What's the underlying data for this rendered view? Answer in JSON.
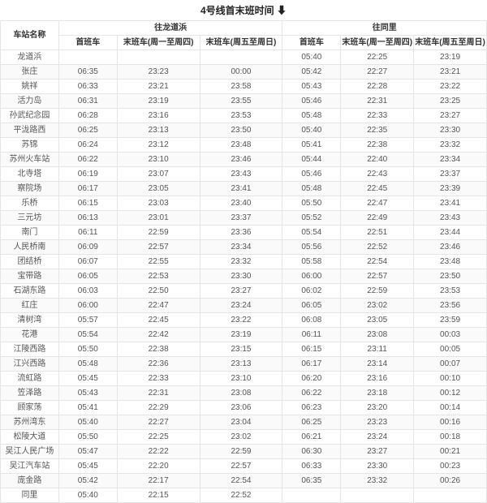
{
  "title": "4号线首末班时间",
  "download_icon": "⬇",
  "headers": {
    "station": "车站名称",
    "dir_a": "往龙道浜",
    "dir_b": "往同里",
    "first": "首班车",
    "last_wk": "末班车(周一至周四)",
    "last_we": "末班车(周五至周日)"
  },
  "stations": [
    {
      "name": "龙道浜",
      "a_first": "",
      "a_wk": "",
      "a_we": "",
      "b_first": "05:40",
      "b_wk": "22:25",
      "b_we": "23:19"
    },
    {
      "name": "张庄",
      "a_first": "06:35",
      "a_wk": "23:23",
      "a_we": "00:00",
      "b_first": "05:42",
      "b_wk": "22:27",
      "b_we": "23:21"
    },
    {
      "name": "姚祥",
      "a_first": "06:33",
      "a_wk": "23:21",
      "a_we": "23:58",
      "b_first": "05:43",
      "b_wk": "22:28",
      "b_we": "23:22"
    },
    {
      "name": "活力岛",
      "a_first": "06:31",
      "a_wk": "23:19",
      "a_we": "23:55",
      "b_first": "05:46",
      "b_wk": "22:31",
      "b_we": "23:25"
    },
    {
      "name": "孙武纪念园",
      "a_first": "06:28",
      "a_wk": "23:16",
      "a_we": "23:53",
      "b_first": "05:48",
      "b_wk": "22:33",
      "b_we": "23:27"
    },
    {
      "name": "平泷路西",
      "a_first": "06:25",
      "a_wk": "23:13",
      "a_we": "23:50",
      "b_first": "05:40",
      "b_wk": "22:35",
      "b_we": "23:30"
    },
    {
      "name": "苏锦",
      "a_first": "06:24",
      "a_wk": "23:12",
      "a_we": "23:48",
      "b_first": "05:41",
      "b_wk": "22:38",
      "b_we": "23:32"
    },
    {
      "name": "苏州火车站",
      "a_first": "06:22",
      "a_wk": "23:10",
      "a_we": "23:46",
      "b_first": "05:44",
      "b_wk": "22:40",
      "b_we": "23:34"
    },
    {
      "name": "北寺塔",
      "a_first": "06:19",
      "a_wk": "23:07",
      "a_we": "23:43",
      "b_first": "05:46",
      "b_wk": "22:43",
      "b_we": "23:37"
    },
    {
      "name": "察院场",
      "a_first": "06:17",
      "a_wk": "23:05",
      "a_we": "23:41",
      "b_first": "05:48",
      "b_wk": "22:45",
      "b_we": "23:39"
    },
    {
      "name": "乐桥",
      "a_first": "06:15",
      "a_wk": "23:03",
      "a_we": "23:40",
      "b_first": "05:50",
      "b_wk": "22:47",
      "b_we": "23:41"
    },
    {
      "name": "三元坊",
      "a_first": "06:13",
      "a_wk": "23:01",
      "a_we": "23:37",
      "b_first": "05:52",
      "b_wk": "22:49",
      "b_we": "23:43"
    },
    {
      "name": "南门",
      "a_first": "06:11",
      "a_wk": "22:59",
      "a_we": "23:36",
      "b_first": "05:54",
      "b_wk": "22:51",
      "b_we": "23:44"
    },
    {
      "name": "人民桥南",
      "a_first": "06:09",
      "a_wk": "22:57",
      "a_we": "23:34",
      "b_first": "05:56",
      "b_wk": "22:52",
      "b_we": "23:46"
    },
    {
      "name": "团结桥",
      "a_first": "06:07",
      "a_wk": "22:55",
      "a_we": "23:32",
      "b_first": "05:58",
      "b_wk": "22:54",
      "b_we": "23:48"
    },
    {
      "name": "宝带路",
      "a_first": "06:05",
      "a_wk": "22:53",
      "a_we": "23:30",
      "b_first": "06:00",
      "b_wk": "22:57",
      "b_we": "23:50"
    },
    {
      "name": "石湖东路",
      "a_first": "06:03",
      "a_wk": "22:50",
      "a_we": "23:27",
      "b_first": "06:02",
      "b_wk": "22:59",
      "b_we": "23:53"
    },
    {
      "name": "红庄",
      "a_first": "06:00",
      "a_wk": "22:47",
      "a_we": "23:24",
      "b_first": "06:05",
      "b_wk": "23:02",
      "b_we": "23:56"
    },
    {
      "name": "清树湾",
      "a_first": "05:57",
      "a_wk": "22:45",
      "a_we": "23:22",
      "b_first": "06:08",
      "b_wk": "23:05",
      "b_we": "23:59"
    },
    {
      "name": "花港",
      "a_first": "05:54",
      "a_wk": "22:42",
      "a_we": "23:19",
      "b_first": "06:11",
      "b_wk": "23:08",
      "b_we": "00:03"
    },
    {
      "name": "江陵西路",
      "a_first": "05:50",
      "a_wk": "22:38",
      "a_we": "23:15",
      "b_first": "06:15",
      "b_wk": "23:11",
      "b_we": "00:05"
    },
    {
      "name": "江兴西路",
      "a_first": "05:48",
      "a_wk": "22:36",
      "a_we": "23:13",
      "b_first": "06:17",
      "b_wk": "23:14",
      "b_we": "00:07"
    },
    {
      "name": "流虹路",
      "a_first": "05:45",
      "a_wk": "22:33",
      "a_we": "23:10",
      "b_first": "06:20",
      "b_wk": "23:16",
      "b_we": "00:10"
    },
    {
      "name": "笠泽路",
      "a_first": "05:43",
      "a_wk": "22:31",
      "a_we": "23:08",
      "b_first": "06:22",
      "b_wk": "23:18",
      "b_we": "00:12"
    },
    {
      "name": "顾家荡",
      "a_first": "05:41",
      "a_wk": "22:29",
      "a_we": "23:06",
      "b_first": "06:23",
      "b_wk": "23:20",
      "b_we": "00:14"
    },
    {
      "name": "苏州湾东",
      "a_first": "05:40",
      "a_wk": "22:27",
      "a_we": "23:04",
      "b_first": "06:25",
      "b_wk": "23:23",
      "b_we": "00:16"
    },
    {
      "name": "松陵大道",
      "a_first": "05:50",
      "a_wk": "22:25",
      "a_we": "23:02",
      "b_first": "06:21",
      "b_wk": "23:24",
      "b_we": "00:18"
    },
    {
      "name": "吴江人民广场",
      "a_first": "05:47",
      "a_wk": "22:22",
      "a_we": "22:59",
      "b_first": "06:30",
      "b_wk": "23:27",
      "b_we": "00:21"
    },
    {
      "name": "吴江汽车站",
      "a_first": "05:45",
      "a_wk": "22:20",
      "a_we": "22:57",
      "b_first": "06:33",
      "b_wk": "23:30",
      "b_we": "00:23"
    },
    {
      "name": "庞金路",
      "a_first": "05:42",
      "a_wk": "22:17",
      "a_we": "22:54",
      "b_first": "06:35",
      "b_wk": "23:32",
      "b_we": "00:26"
    },
    {
      "name": "同里",
      "a_first": "05:40",
      "a_wk": "22:15",
      "a_we": "22:52",
      "b_first": "",
      "b_wk": "",
      "b_we": ""
    }
  ]
}
